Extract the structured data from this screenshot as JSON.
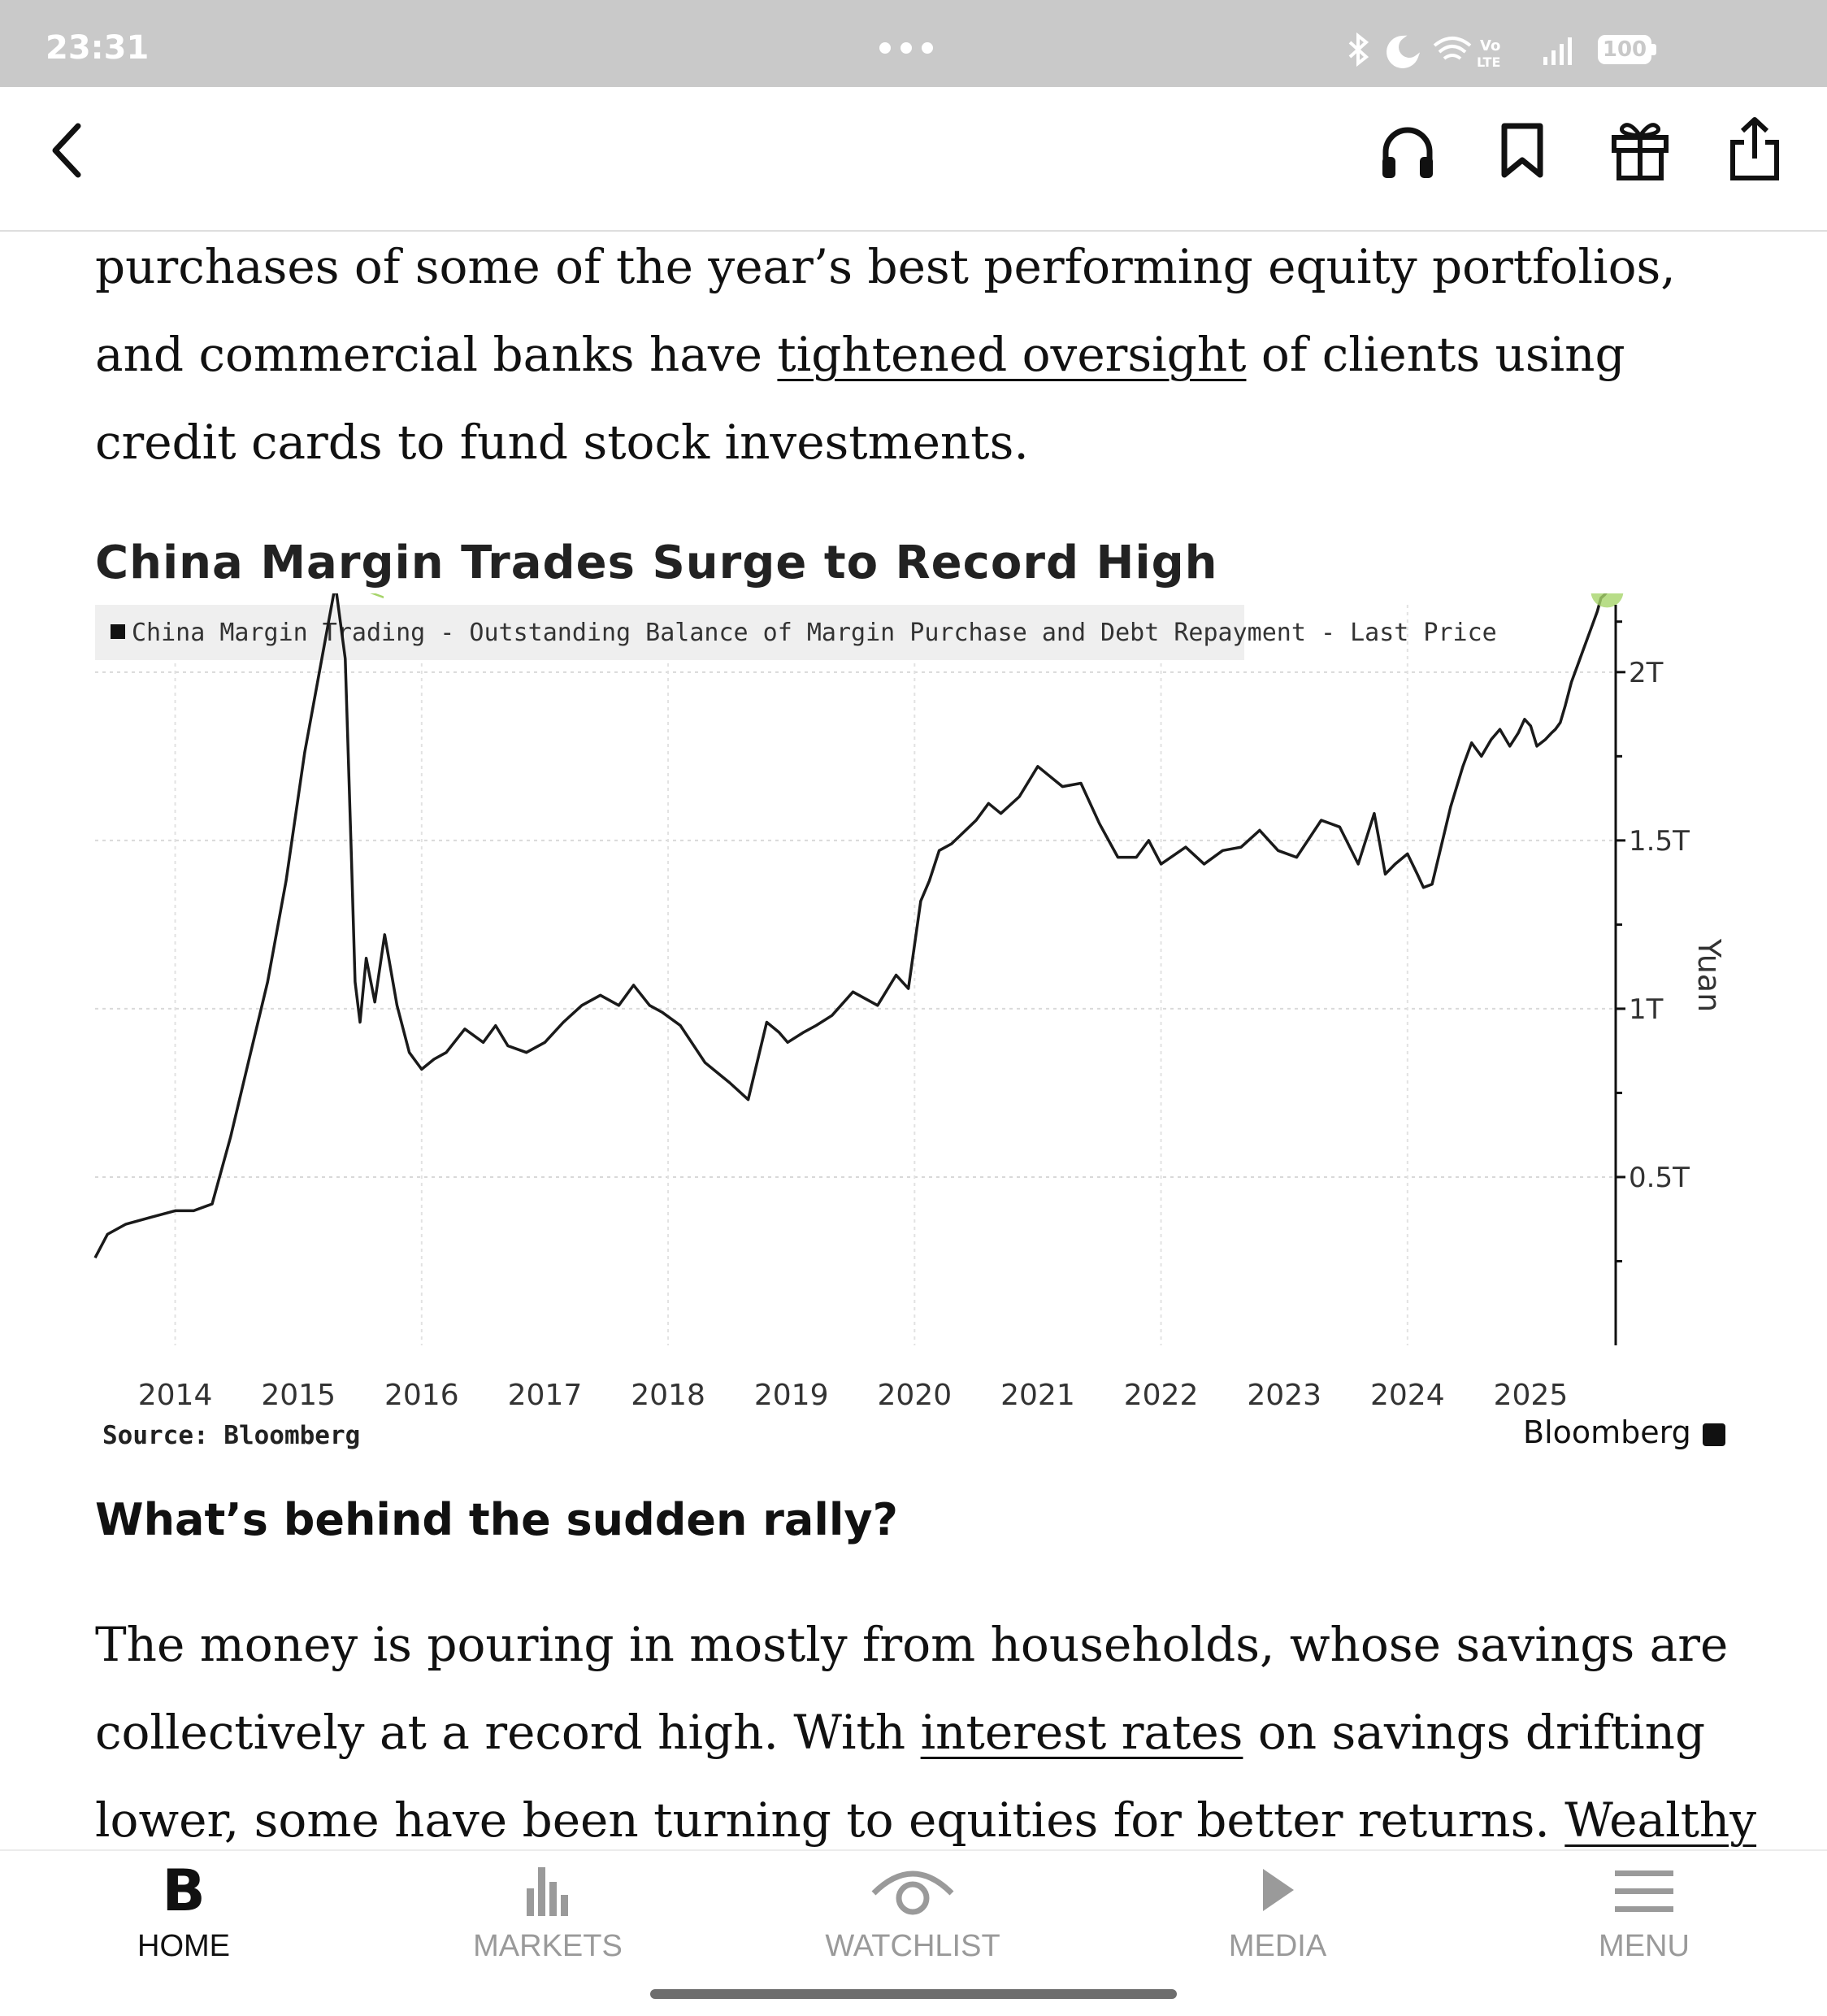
{
  "status_bar": {
    "time": "23:31",
    "battery": "100"
  },
  "article": {
    "para1_parts": [
      "purchases of some of the year’s best performing equity portfolios, and commercial banks have ",
      "tightened oversight",
      " of clients using credit cards to fund stock investments."
    ],
    "chart_title": "China Margin Trades Surge to Record High",
    "chart_source": "Source: Bloomberg",
    "chart_brand": "Bloomberg",
    "subheading": "What’s behind the sudden rally?",
    "para2_parts": [
      "The money is pouring in mostly from households, whose savings are collectively at a record high. With ",
      "interest rates",
      " on savings drifting lower, some have been turning to equities for better returns. ",
      "Wealthy"
    ]
  },
  "chart_data": {
    "type": "line",
    "title": "China Margin Trades Surge to Record High",
    "legend": "China Margin Trading - Outstanding Balance of Margin Purchase and Debt Repayment - Last Price",
    "legend_placement": "top-left",
    "ylabel": "Yuan",
    "y_tick_labels": [
      "0.5T",
      "1T",
      "1.5T",
      "2T"
    ],
    "y_ticks": [
      0.5,
      1.0,
      1.5,
      2.0
    ],
    "ylim": [
      0.0,
      2.2
    ],
    "x_tick_labels": [
      "2014",
      "2015",
      "2016",
      "2017",
      "2018",
      "2019",
      "2020",
      "2021",
      "2022",
      "2023",
      "2024",
      "2025"
    ],
    "xlim": [
      2013.35,
      2025.65
    ],
    "grid": true,
    "series": [
      {
        "name": "China Margin Trading - Outstanding Balance of Margin Purchase and Debt Repayment - Last Price",
        "color": "#1a1a1a",
        "x": [
          2013.35,
          2013.45,
          2013.6,
          2013.8,
          2014.0,
          2014.15,
          2014.3,
          2014.45,
          2014.6,
          2014.75,
          2014.9,
          2015.05,
          2015.2,
          2015.3,
          2015.38,
          2015.43,
          2015.46,
          2015.5,
          2015.55,
          2015.62,
          2015.7,
          2015.8,
          2015.9,
          2016.0,
          2016.1,
          2016.2,
          2016.35,
          2016.5,
          2016.6,
          2016.7,
          2016.85,
          2017.0,
          2017.15,
          2017.3,
          2017.45,
          2017.6,
          2017.72,
          2017.85,
          2017.95,
          2018.1,
          2018.3,
          2018.5,
          2018.65,
          2018.8,
          2018.9,
          2018.97,
          2019.1,
          2019.2,
          2019.33,
          2019.5,
          2019.7,
          2019.85,
          2019.95,
          2020.05,
          2020.12,
          2020.2,
          2020.3,
          2020.5,
          2020.6,
          2020.7,
          2020.85,
          2021.0,
          2021.2,
          2021.35,
          2021.5,
          2021.65,
          2021.8,
          2021.9,
          2022.0,
          2022.2,
          2022.35,
          2022.5,
          2022.65,
          2022.8,
          2022.95,
          2023.1,
          2023.3,
          2023.45,
          2023.6,
          2023.73,
          2023.82,
          2023.9,
          2024.0,
          2024.08,
          2024.13,
          2024.2,
          2024.35,
          2024.45,
          2024.52,
          2024.6,
          2024.68,
          2024.75,
          2024.83,
          2024.9,
          2024.95,
          2025.0,
          2025.05,
          2025.12,
          2025.17,
          2025.2,
          2025.24,
          2025.28,
          2025.33,
          2025.38,
          2025.42,
          2025.46,
          2025.5,
          2025.54,
          2025.57,
          2025.6,
          2025.62
        ],
        "y": [
          0.26,
          0.33,
          0.36,
          0.38,
          0.4,
          0.4,
          0.42,
          0.62,
          0.85,
          1.08,
          1.38,
          1.76,
          2.06,
          2.26,
          2.04,
          1.45,
          1.08,
          0.96,
          1.15,
          1.02,
          1.22,
          1.01,
          0.87,
          0.82,
          0.85,
          0.87,
          0.94,
          0.9,
          0.95,
          0.89,
          0.87,
          0.9,
          0.96,
          1.01,
          1.04,
          1.01,
          1.07,
          1.01,
          0.99,
          0.95,
          0.84,
          0.78,
          0.73,
          0.96,
          0.93,
          0.9,
          0.93,
          0.95,
          0.98,
          1.05,
          1.01,
          1.1,
          1.06,
          1.32,
          1.38,
          1.47,
          1.49,
          1.56,
          1.61,
          1.58,
          1.63,
          1.72,
          1.66,
          1.67,
          1.55,
          1.45,
          1.45,
          1.5,
          1.43,
          1.48,
          1.43,
          1.47,
          1.48,
          1.53,
          1.47,
          1.45,
          1.56,
          1.54,
          1.43,
          1.58,
          1.4,
          1.43,
          1.46,
          1.4,
          1.36,
          1.37,
          1.6,
          1.72,
          1.79,
          1.75,
          1.8,
          1.83,
          1.78,
          1.82,
          1.86,
          1.84,
          1.78,
          1.8,
          1.82,
          1.83,
          1.85,
          1.9,
          1.97,
          2.02,
          2.06,
          2.1,
          2.14,
          2.18,
          2.22,
          2.23,
          2.24
        ]
      }
    ],
    "annotations": [
      {
        "type": "record-high-marker",
        "value": 2.24,
        "color": "#a6d46a"
      }
    ]
  },
  "bottom_nav": {
    "items": [
      {
        "label": "HOME",
        "active": true
      },
      {
        "label": "MARKETS",
        "active": false
      },
      {
        "label": "WATCHLIST",
        "active": false
      },
      {
        "label": "MEDIA",
        "active": false
      },
      {
        "label": "MENU",
        "active": false
      }
    ]
  },
  "colors": {
    "status_bar": "#c9c9c9",
    "nav_inactive": "#9a9a9a",
    "highlight": "#a6d46a"
  }
}
